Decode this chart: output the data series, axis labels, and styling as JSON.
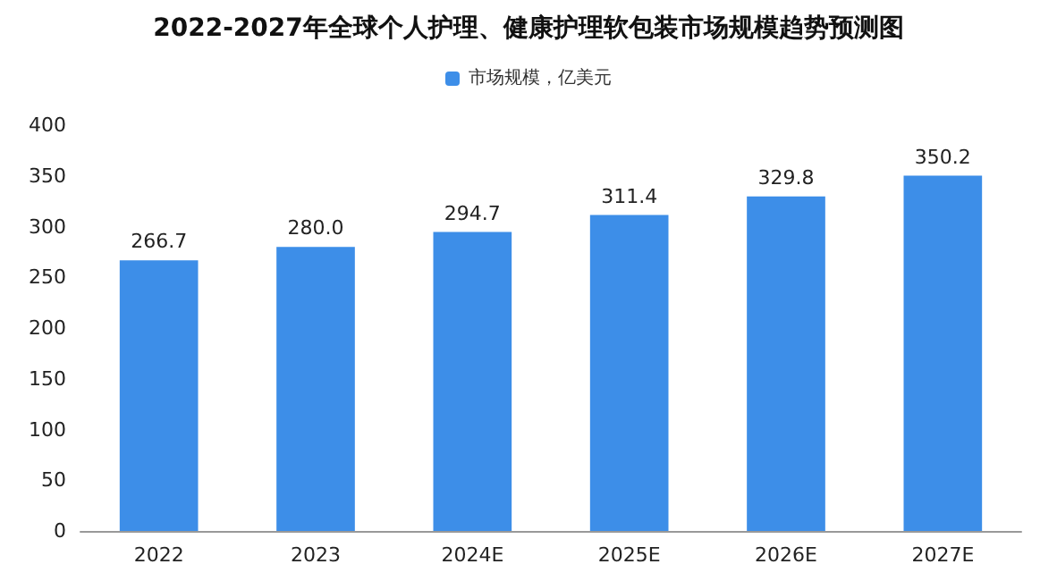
{
  "chart_data": {
    "type": "bar",
    "title": "2022-2027年全球个人护理、健康护理软包装市场规模趋势预测图",
    "categories": [
      "2022",
      "2023",
      "2024E",
      "2025E",
      "2026E",
      "2027E"
    ],
    "series": [
      {
        "name": "市场规模，亿美元",
        "color": "#3d8ee8",
        "values": [
          266.7,
          280.0,
          294.7,
          311.4,
          329.8,
          350.2
        ]
      }
    ],
    "value_labels": [
      "266.7",
      "280.0",
      "294.7",
      "311.4",
      "329.8",
      "350.2"
    ],
    "ylim": [
      0,
      400
    ],
    "yticks": [
      0,
      50,
      100,
      150,
      200,
      250,
      300,
      350,
      400
    ],
    "grid": false,
    "legend": "top"
  }
}
